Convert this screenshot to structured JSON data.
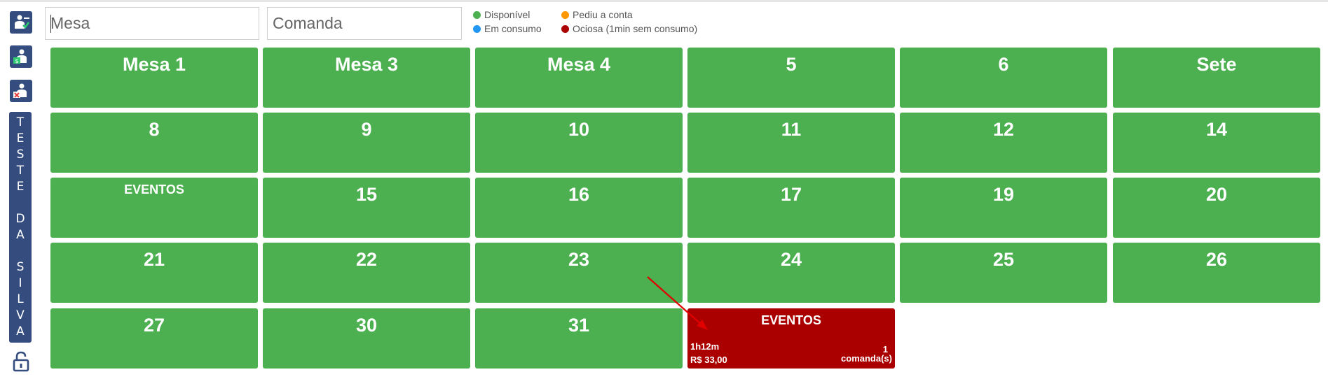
{
  "sidebar": {
    "buttons": [
      {
        "icon": "waiter-check-icon"
      },
      {
        "icon": "waiter-money-icon"
      },
      {
        "icon": "waiter-cancel-icon"
      }
    ],
    "user_letters": [
      "T",
      "E",
      "S",
      "T",
      "E",
      "",
      "D",
      "A",
      "",
      "S",
      "I",
      "L",
      "V",
      "A"
    ],
    "lock_icon": "unlock-icon",
    "accent": "#344d7e"
  },
  "search": {
    "mesa_placeholder": "Mesa",
    "comanda_placeholder": "Comanda"
  },
  "legend": [
    {
      "label": "Disponível",
      "color": "#4caf50"
    },
    {
      "label": "Em consumo",
      "color": "#2196f3"
    },
    {
      "label": "Pediu a conta",
      "color": "#ff9800"
    },
    {
      "label": "Ociosa (1min sem consumo)",
      "color": "#aa0000"
    }
  ],
  "tables": [
    {
      "name": "Mesa 1"
    },
    {
      "name": "Mesa 3"
    },
    {
      "name": "Mesa 4"
    },
    {
      "name": "5"
    },
    {
      "name": "6"
    },
    {
      "name": "Sete"
    },
    {
      "name": "8"
    },
    {
      "name": "9"
    },
    {
      "name": "10"
    },
    {
      "name": "11"
    },
    {
      "name": "12"
    },
    {
      "name": "14"
    },
    {
      "name": "EVENTOS"
    },
    {
      "name": "15"
    },
    {
      "name": "16"
    },
    {
      "name": "17"
    },
    {
      "name": "19"
    },
    {
      "name": "20"
    },
    {
      "name": "21"
    },
    {
      "name": "22"
    },
    {
      "name": "23"
    },
    {
      "name": "24"
    },
    {
      "name": "25"
    },
    {
      "name": "26"
    },
    {
      "name": "27"
    },
    {
      "name": "30"
    },
    {
      "name": "31"
    },
    {
      "name": "EVENTOS",
      "status": "ociosa",
      "time": "1h12m",
      "amount": "R$ 33,00",
      "comandas_count": "1",
      "comandas_label": "comanda(s)"
    }
  ],
  "colors": {
    "available": "#4caf50",
    "idle": "#aa0000",
    "annotation_arrow": "#e00000"
  }
}
